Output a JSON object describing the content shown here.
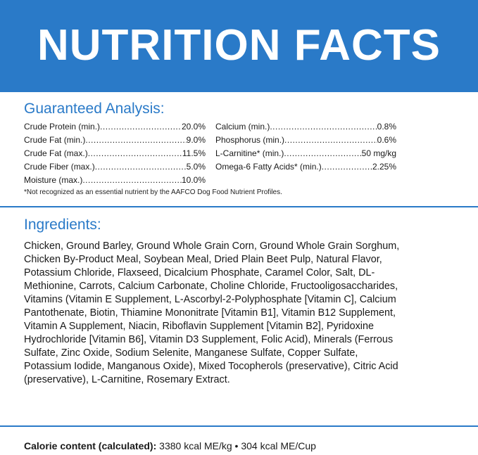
{
  "banner": {
    "title": "NUTRITION FACTS",
    "bg_color": "#2a7ac8"
  },
  "guaranteed_analysis": {
    "title": "Guaranteed Analysis:",
    "left": [
      {
        "label": "Crude Protein (min.)",
        "value": "20.0%"
      },
      {
        "label": "Crude Fat (min.)",
        "value": "9.0%"
      },
      {
        "label": "Crude Fat (max.)",
        "value": "11.5%"
      },
      {
        "label": "Crude Fiber (max.)",
        "value": "5.0%"
      },
      {
        "label": "Moisture (max.)",
        "value": "10.0%"
      }
    ],
    "right": [
      {
        "label": "Calcium (min.)",
        "value": "0.8%"
      },
      {
        "label": "Phosphorus (min.)",
        "value": "0.6%"
      },
      {
        "label": "L-Carnitine* (min.)",
        "value": "50 mg/kg"
      },
      {
        "label": "Omega-6 Fatty Acids* (min.)",
        "value": "2.25%"
      }
    ],
    "footnote": "*Not recognized as an essential nutrient by the AAFCO Dog Food Nutrient Profiles."
  },
  "ingredients": {
    "title": "Ingredients:",
    "text": "Chicken, Ground Barley, Ground Whole Grain Corn, Ground Whole Grain Sorghum, Chicken By-Product Meal, Soybean Meal, Dried Plain Beet Pulp, Natural Flavor, Potassium Chloride, Flaxseed, Dicalcium Phosphate, Caramel Color, Salt, DL-Methionine, Carrots, Calcium Carbonate, Choline Chloride, Fructooligosaccharides, Vitamins (Vitamin E Supplement, L-Ascorbyl-2-Polyphosphate [Vitamin C], Calcium Pantothenate, Biotin, Thiamine Mononitrate [Vitamin B1], Vitamin B12 Supplement, Vitamin A Supplement, Niacin, Riboflavin Supplement [Vitamin B2], Pyridoxine Hydrochloride [Vitamin B6], Vitamin D3 Supplement, Folic Acid), Minerals (Ferrous Sulfate, Zinc Oxide, Sodium Selenite, Manganese Sulfate, Copper Sulfate, Potassium Iodide, Manganous Oxide), Mixed Tocopherols (preservative), Citric Acid (preservative), L-Carnitine, Rosemary Extract."
  },
  "calorie": {
    "label": "Calorie content (calculated):",
    "value": "3380 kcal ME/kg • 304 kcal ME/Cup"
  },
  "colors": {
    "accent": "#2a7ac8",
    "text": "#1a1a1a",
    "background": "#ffffff"
  }
}
